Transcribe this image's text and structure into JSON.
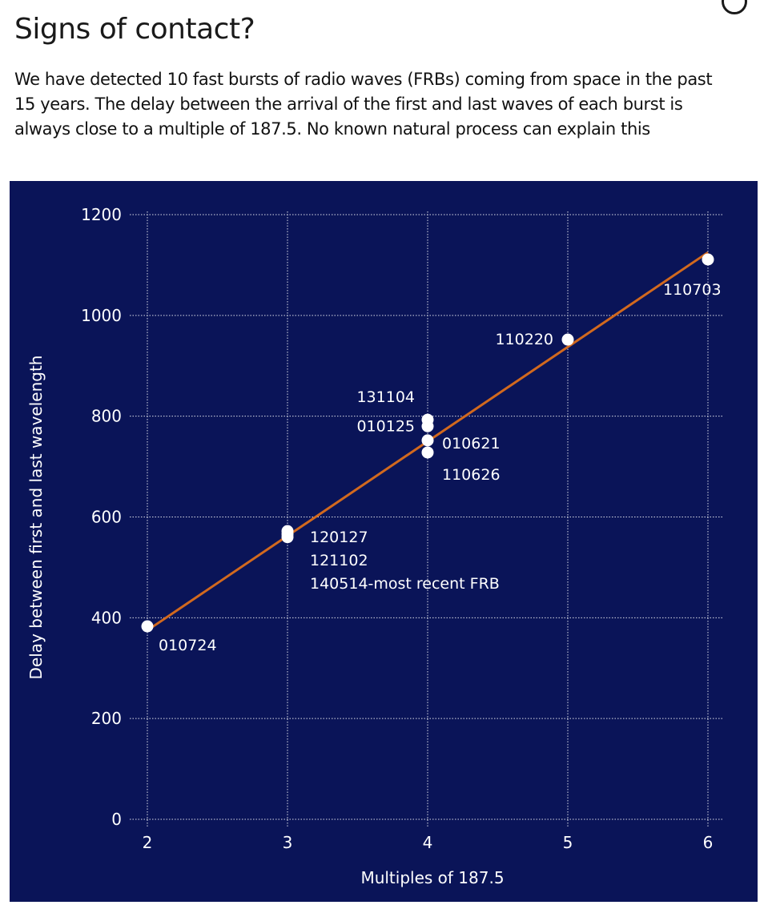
{
  "page": {
    "title": "Signs of contact?",
    "subtitle": "We have detected 10 fast bursts of radio waves (FRBs) coming from space in the past 15 years. The delay between the arrival of the first and last waves of each burst is always close to a multiple of 187.5. No known natural process can explain this"
  },
  "colors": {
    "panel_background": "#0a1458",
    "grid": "#ffffff",
    "points": "#ffffff",
    "fit_line": "#d2691e"
  },
  "chart_data": {
    "type": "scatter",
    "title": "",
    "xlabel": "Multiples of 187.5",
    "ylabel": "Delay between first and last wavelength",
    "xlim": [
      2,
      6
    ],
    "ylim": [
      0,
      1200
    ],
    "xticks": [
      "2",
      "3",
      "4",
      "5",
      "6"
    ],
    "yticks": [
      "0",
      "200",
      "400",
      "600",
      "800",
      "1000",
      "1200"
    ],
    "grid": true,
    "fit_line": {
      "x": [
        2,
        6
      ],
      "y": [
        375,
        1125
      ]
    },
    "points": [
      {
        "x": 2.0,
        "y": 383
      },
      {
        "x": 3.0,
        "y": 560
      },
      {
        "x": 3.0,
        "y": 566
      },
      {
        "x": 3.0,
        "y": 572
      },
      {
        "x": 4.0,
        "y": 793
      },
      {
        "x": 4.0,
        "y": 780
      },
      {
        "x": 4.0,
        "y": 752
      },
      {
        "x": 4.0,
        "y": 728
      },
      {
        "x": 5.0,
        "y": 952
      },
      {
        "x": 6.0,
        "y": 1111
      }
    ],
    "annotations": [
      {
        "text": "010724",
        "x": 2.0,
        "y": 383,
        "anchor": "below-right"
      },
      {
        "text": "120127",
        "x": 3.0,
        "y": 566,
        "anchor": "right-1"
      },
      {
        "text": "121102",
        "x": 3.0,
        "y": 566,
        "anchor": "right-2"
      },
      {
        "text": "140514-most recent FRB",
        "x": 3.0,
        "y": 566,
        "anchor": "right-3"
      },
      {
        "text": "131104",
        "x": 4.0,
        "y": 793,
        "anchor": "left-upper"
      },
      {
        "text": "010125",
        "x": 4.0,
        "y": 780,
        "anchor": "left-lower"
      },
      {
        "text": "010621",
        "x": 4.0,
        "y": 752,
        "anchor": "right-upper"
      },
      {
        "text": "110626",
        "x": 4.0,
        "y": 728,
        "anchor": "right-lower"
      },
      {
        "text": "110220",
        "x": 5.0,
        "y": 952,
        "anchor": "left"
      },
      {
        "text": "110703",
        "x": 6.0,
        "y": 1111,
        "anchor": "below-left"
      }
    ]
  }
}
